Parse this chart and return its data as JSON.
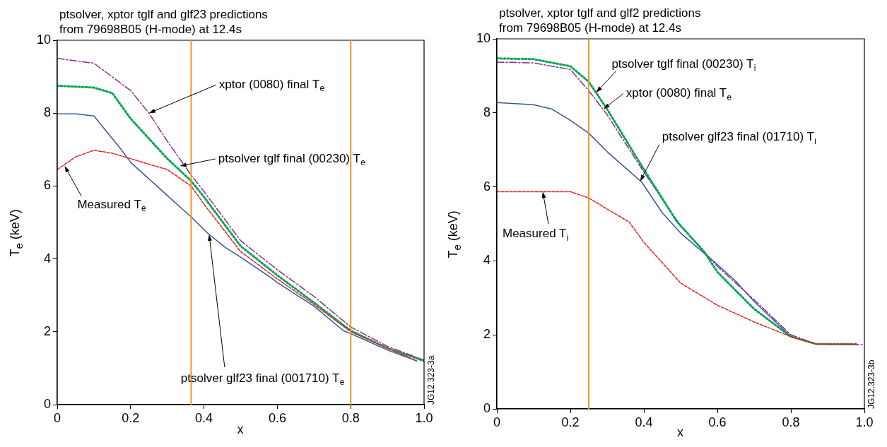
{
  "chart_data": [
    {
      "type": "line",
      "title": "ptsolver, xptor tglf and glf23 predictions\nfrom 79698B05 (H-mode) at 12.4s",
      "xlabel": "x",
      "ylabel": "T$_{e}$ (keV)",
      "xlim": [
        0,
        1
      ],
      "ylim": [
        0,
        10
      ],
      "xticks": [
        0,
        0.2,
        0.4,
        0.6,
        0.8,
        {
          "value": 1,
          "label": "1.0"
        }
      ],
      "yticks": [
        0,
        2,
        4,
        6,
        8,
        10
      ],
      "grid": false,
      "legend": false,
      "marker": "none",
      "series": [
        {
          "color": "#92278f",
          "line_style": "dashdot",
          "x": [
            0,
            0.1,
            0.2,
            0.25,
            0.3,
            0.365,
            0.4,
            0.5,
            0.6,
            0.7,
            0.8,
            0.9,
            1.0
          ],
          "values": [
            9.5,
            9.37,
            8.62,
            8.0,
            7.23,
            6.3,
            5.85,
            4.5,
            3.7,
            2.97,
            2.13,
            1.6,
            1.22
          ]
        },
        {
          "color": "#00a651",
          "line_style": "dotted",
          "x": [
            0,
            0.1,
            0.15,
            0.2,
            0.25,
            0.3,
            0.365,
            0.4,
            0.5,
            0.6,
            0.7,
            0.8,
            0.9,
            1.0
          ],
          "values": [
            8.75,
            8.7,
            8.55,
            7.85,
            7.3,
            6.75,
            6.14,
            5.7,
            4.35,
            3.55,
            2.8,
            2.03,
            1.55,
            1.2
          ]
        },
        {
          "color": "#3a53a4",
          "line_style": "solid",
          "x": [
            0,
            0.05,
            0.1,
            0.175,
            0.2,
            0.29,
            0.365,
            0.414,
            0.46,
            0.5,
            0.58,
            0.6,
            0.7,
            0.78,
            0.8,
            0.9,
            0.98
          ],
          "values": [
            7.98,
            7.98,
            7.92,
            6.99,
            6.65,
            5.83,
            5.15,
            4.67,
            4.3,
            4.05,
            3.5,
            3.35,
            2.7,
            2.03,
            1.95,
            1.5,
            1.2
          ]
        },
        {
          "color": "#ed1c24",
          "line_style": "dashed",
          "x": [
            0,
            0.05,
            0.1,
            0.15,
            0.2,
            0.25,
            0.3,
            0.365,
            0.4,
            0.5,
            0.6,
            0.7,
            0.8,
            0.9,
            0.98
          ],
          "values": [
            6.45,
            6.8,
            6.98,
            6.9,
            6.75,
            6.6,
            6.45,
            6.0,
            5.5,
            4.2,
            3.45,
            2.75,
            2.0,
            1.55,
            1.2
          ]
        }
      ],
      "ref_lines": [
        {
          "axis": "x",
          "value": 0.365,
          "color": "#f7941d"
        },
        {
          "axis": "x",
          "value": 0.8,
          "color": "#f7941d"
        }
      ],
      "annotations": [
        {
          "text": "xptor (0080) final T$_{e}$",
          "x": 0.25,
          "y": 8.0
        },
        {
          "text": "ptsolver tglf final (00230) T$_{e}$",
          "x": 0.335,
          "y": 6.55
        },
        {
          "text": "Measured T$_{e}$",
          "x": 0.02,
          "y": 6.55
        },
        {
          "text": "ptsolver glf23 final (001710) T$_{e}$",
          "x": 0.414,
          "y": 4.67
        },
        "JG12.323-3a"
      ]
    },
    {
      "type": "line",
      "title": "ptsolver, xptor tglf and glf2 predictions\nfrom 79698B05 (H-mode) at 12.4s",
      "xlabel": "x",
      "ylabel": "T$_{e}$ (keV)",
      "xlim": [
        0,
        1
      ],
      "ylim": [
        0,
        10
      ],
      "xticks": [
        0,
        0.2,
        0.4,
        0.6,
        0.8,
        {
          "value": 1,
          "label": "1.0"
        }
      ],
      "yticks": [
        0,
        2,
        4,
        6,
        8,
        10
      ],
      "grid": false,
      "legend": false,
      "marker": "none",
      "series": [
        {
          "color": "#00a651",
          "line_style": "dotted",
          "x": [
            0,
            0.1,
            0.2,
            0.25,
            0.3,
            0.4,
            0.49,
            0.563,
            0.6,
            0.7,
            0.8,
            0.87,
            0.98
          ],
          "values": [
            9.47,
            9.45,
            9.26,
            8.84,
            8.1,
            6.47,
            5.06,
            4.26,
            3.7,
            2.7,
            1.95,
            1.75,
            1.75
          ]
        },
        {
          "color": "#92278f",
          "line_style": "dashdot",
          "x": [
            0,
            0.1,
            0.2,
            0.25,
            0.3,
            0.4,
            0.5,
            0.6,
            0.7,
            0.8,
            0.87,
            1.0
          ],
          "values": [
            9.37,
            9.35,
            9.17,
            8.6,
            7.95,
            6.4,
            4.95,
            3.85,
            2.95,
            2.0,
            1.75,
            1.73
          ]
        },
        {
          "color": "#3a53a4",
          "line_style": "solid",
          "x": [
            0,
            0.1,
            0.15,
            0.2,
            0.25,
            0.3,
            0.394,
            0.45,
            0.5,
            0.6,
            0.65,
            0.7,
            0.8,
            0.87,
            0.98
          ],
          "values": [
            8.28,
            8.22,
            8.1,
            7.8,
            7.45,
            6.95,
            6.13,
            5.3,
            4.75,
            3.9,
            3.45,
            2.9,
            1.95,
            1.75,
            1.73
          ]
        },
        {
          "color": "#ed1c24",
          "line_style": "dashed",
          "x": [
            0,
            0.2,
            0.25,
            0.3,
            0.36,
            0.4,
            0.5,
            0.6,
            0.7,
            0.8,
            0.87,
            0.98
          ],
          "values": [
            5.87,
            5.87,
            5.7,
            5.4,
            5.05,
            4.5,
            3.4,
            2.8,
            2.35,
            1.95,
            1.75,
            1.75
          ]
        }
      ],
      "ref_lines": [
        {
          "axis": "x",
          "value": 0.25,
          "color": "#f7941d"
        }
      ],
      "annotations": [
        {
          "text": "ptsolver tglf final (00230) T$_{i}$",
          "x": 0.27,
          "y": 8.55
        },
        {
          "text": "xptor (0080) final T$_{e}$",
          "x": 0.29,
          "y": 8.1
        },
        {
          "text": "ptsolver glf23 final (01710) T$_{i}$",
          "x": 0.39,
          "y": 6.15
        },
        {
          "text": "Measured T$_{i}$",
          "x": 0.125,
          "y": 5.87
        },
        "JG12.323-3b"
      ]
    }
  ]
}
